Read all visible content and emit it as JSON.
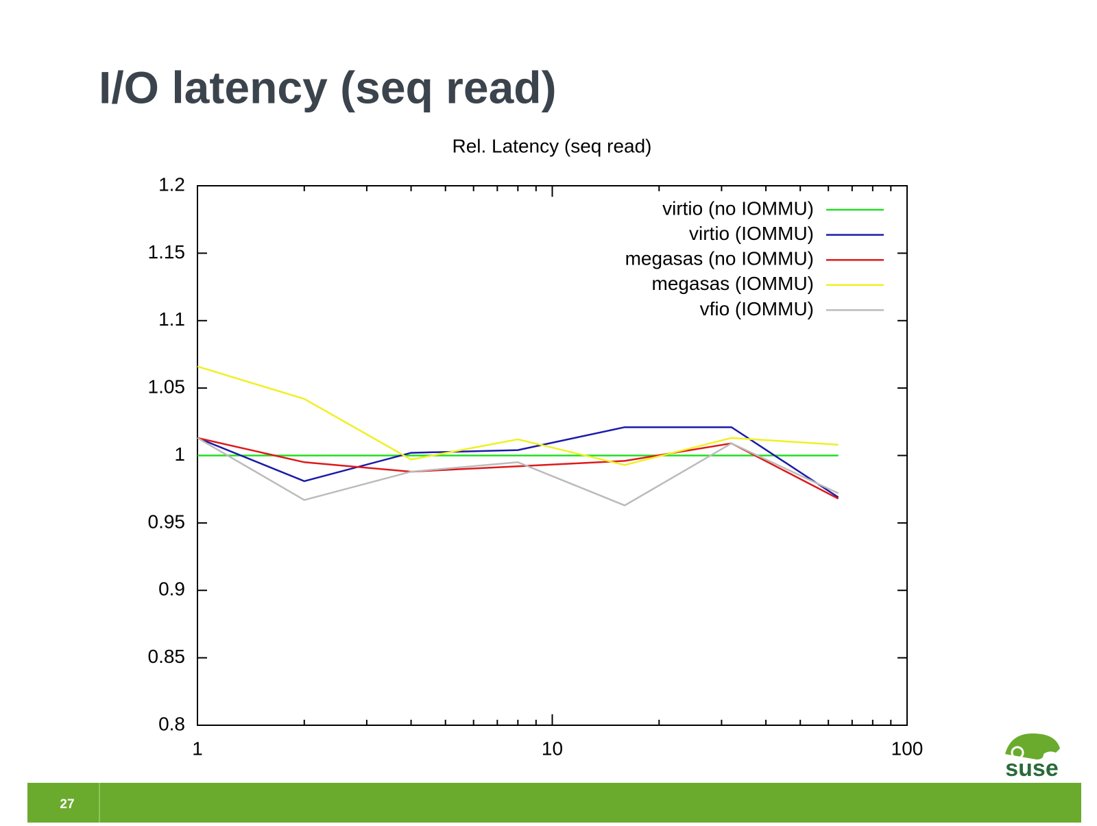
{
  "slide": {
    "title": "I/O latency (seq read)",
    "page_number": "27",
    "logo": "suse"
  },
  "chart_data": {
    "type": "line",
    "title": "Rel. Latency (seq read)",
    "x": [
      1,
      2,
      4,
      8,
      16,
      32,
      64
    ],
    "series": [
      {
        "name": "virtio (no IOMMU)",
        "color": "#22dd22",
        "values": [
          1.0,
          1.0,
          1.0,
          1.0,
          1.0,
          1.0,
          1.0
        ]
      },
      {
        "name": "virtio (IOMMU)",
        "color": "#1a1aaa",
        "values": [
          1.013,
          0.981,
          1.002,
          1.004,
          1.021,
          1.021,
          0.969
        ]
      },
      {
        "name": "megasas (no IOMMU)",
        "color": "#dd1a1a",
        "values": [
          1.013,
          0.995,
          0.988,
          0.992,
          0.996,
          1.009,
          0.968
        ]
      },
      {
        "name": "megasas (IOMMU)",
        "color": "#f0f022",
        "values": [
          1.066,
          1.042,
          0.997,
          1.012,
          0.993,
          1.013,
          1.008
        ]
      },
      {
        "name": "vfio (IOMMU)",
        "color": "#bbbbbb",
        "values": [
          1.013,
          0.967,
          0.988,
          0.995,
          0.963,
          1.009,
          0.972
        ]
      }
    ],
    "xlim": [
      1,
      100
    ],
    "xticks": [
      1,
      10,
      100
    ],
    "xminorticks": [
      2,
      3,
      4,
      5,
      6,
      7,
      8,
      9,
      20,
      30,
      40,
      50,
      60,
      70,
      80,
      90
    ],
    "log_x": true,
    "ylim": [
      0.8,
      1.2
    ],
    "yticks": [
      0.8,
      0.85,
      0.9,
      0.95,
      1,
      1.05,
      1.1,
      1.15,
      1.2
    ],
    "legend": "top-right"
  }
}
